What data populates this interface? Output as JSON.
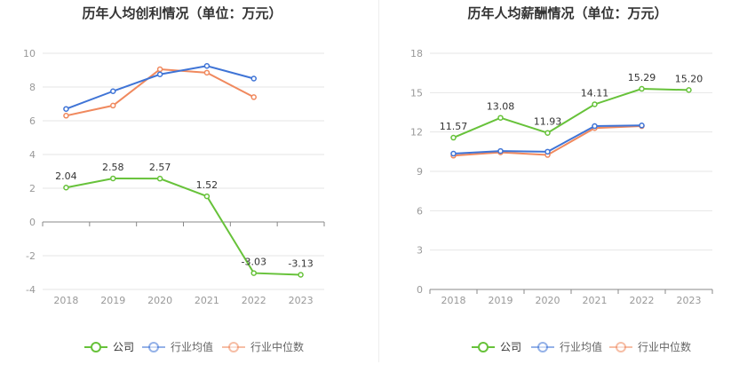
{
  "chart_data": [
    {
      "type": "line",
      "title": "历年人均创利情况（单位：万元）",
      "categories": [
        "2018",
        "2019",
        "2020",
        "2021",
        "2022",
        "2023"
      ],
      "ylim": [
        -4,
        10
      ],
      "yticks": [
        10,
        8,
        6,
        4,
        2,
        0,
        -2,
        -4
      ],
      "grid": true,
      "legend_position": "bottom",
      "series": [
        {
          "name": "公司",
          "color": "#67c23a",
          "values": [
            2.04,
            2.58,
            2.57,
            1.52,
            -3.03,
            -3.13
          ],
          "labels": [
            "2.04",
            "2.58",
            "2.57",
            "1.52",
            "-3.03",
            "-3.13"
          ]
        },
        {
          "name": "行业均值",
          "color": "#3f74d6",
          "values": [
            6.7,
            7.75,
            8.75,
            9.25,
            8.5,
            null
          ]
        },
        {
          "name": "行业中位数",
          "color": "#f0895e",
          "values": [
            6.3,
            6.9,
            9.05,
            8.85,
            7.4,
            null
          ]
        }
      ]
    },
    {
      "type": "line",
      "title": "历年人均薪酬情况（单位：万元）",
      "categories": [
        "2018",
        "2019",
        "2020",
        "2021",
        "2022",
        "2023"
      ],
      "ylim": [
        0,
        18
      ],
      "yticks": [
        18,
        15,
        12,
        9,
        6,
        3,
        0
      ],
      "grid": true,
      "legend_position": "bottom",
      "series": [
        {
          "name": "公司",
          "color": "#67c23a",
          "values": [
            11.57,
            13.08,
            11.93,
            14.11,
            15.29,
            15.2
          ],
          "labels": [
            "11.57",
            "13.08",
            "11.93",
            "14.11",
            "15.29",
            "15.20"
          ]
        },
        {
          "name": "行业均值",
          "color": "#3f74d6",
          "values": [
            10.35,
            10.55,
            10.5,
            12.45,
            12.5,
            null
          ]
        },
        {
          "name": "行业中位数",
          "color": "#f0895e",
          "values": [
            10.2,
            10.45,
            10.25,
            12.3,
            12.45,
            null
          ]
        }
      ]
    }
  ]
}
